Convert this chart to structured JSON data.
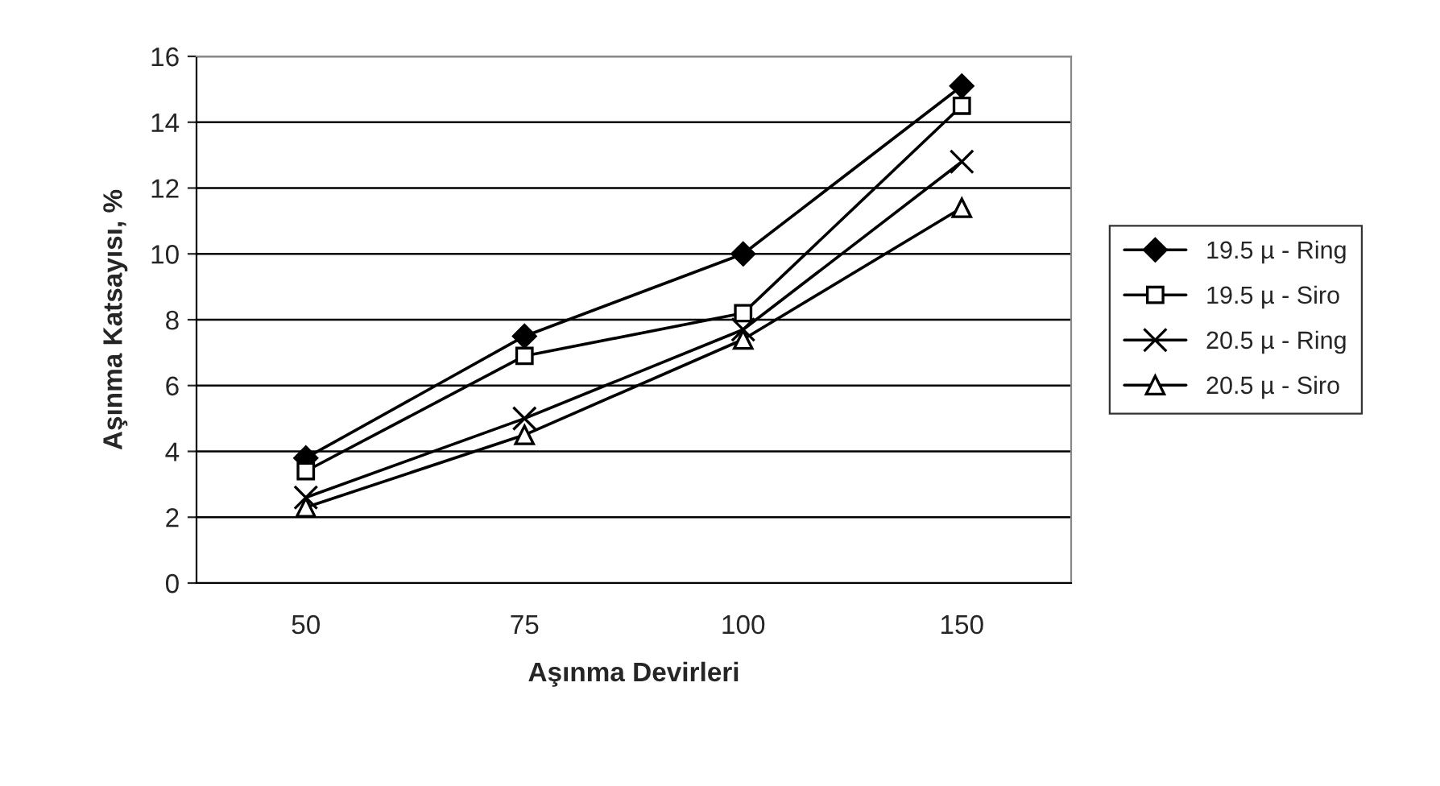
{
  "chart_data": {
    "type": "line",
    "xlabel": "Aşınma Devirleri",
    "ylabel": "Aşınma Katsayısı, %",
    "categories": [
      "50",
      "75",
      "100",
      "150"
    ],
    "series": [
      {
        "name": "19.5 µ - Ring",
        "color": "#000000",
        "marker": "diamond",
        "values": [
          3.8,
          7.5,
          10.0,
          15.1
        ]
      },
      {
        "name": "19.5 µ - Siro",
        "color": "#000000",
        "marker": "square",
        "values": [
          3.4,
          6.9,
          8.2,
          14.5
        ]
      },
      {
        "name": "20.5 µ - Ring",
        "color": "#000000",
        "marker": "cross",
        "values": [
          2.6,
          5.0,
          7.7,
          12.8
        ]
      },
      {
        "name": "20.5 µ - Siro",
        "color": "#000000",
        "marker": "triangle",
        "values": [
          2.3,
          4.5,
          7.4,
          11.4
        ]
      }
    ],
    "ylim": [
      0,
      16
    ],
    "yticks": [
      0,
      2,
      4,
      6,
      8,
      10,
      12,
      14,
      16
    ],
    "grid": "y",
    "legend": "right",
    "line_style": "solid"
  }
}
